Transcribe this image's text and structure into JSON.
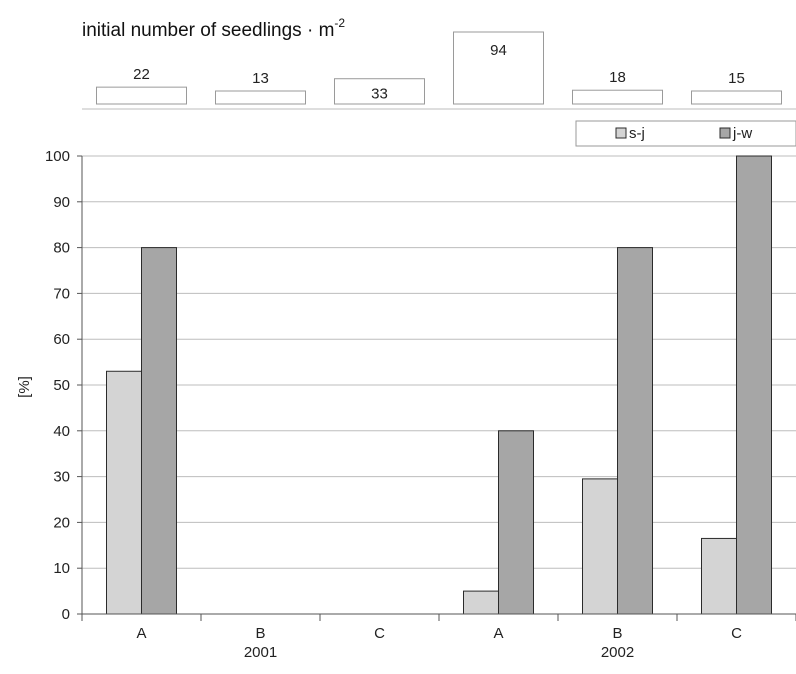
{
  "header": {
    "title": "initial number of seedlings · m",
    "title_superscript": "-2"
  },
  "seedlings": [
    "22",
    "13",
    "33",
    "94",
    "18",
    "15"
  ],
  "seedling_levels": [
    22,
    13,
    33,
    94,
    18,
    15
  ],
  "colors": {
    "s-j": "#d4d4d4",
    "j-w": "#a6a6a6",
    "grid": "#bdbdbd",
    "axis": "#555555",
    "bar_stroke": "#2b2b2b"
  },
  "chart_data": {
    "type": "bar",
    "title": "initial number of seedlings · m-2",
    "ylabel": "[%]",
    "xlabel": "",
    "ylim": [
      0,
      100
    ],
    "yticks": [
      0,
      10,
      20,
      30,
      40,
      50,
      60,
      70,
      80,
      90,
      100
    ],
    "grid": true,
    "legend_position": "top-right",
    "categories": [
      "A",
      "B",
      "C",
      "A",
      "B",
      "C"
    ],
    "groups": [
      {
        "label": "2001",
        "categories": [
          "A",
          "B",
          "C"
        ]
      },
      {
        "label": "2002",
        "categories": [
          "A",
          "B",
          "C"
        ]
      }
    ],
    "series": [
      {
        "name": "s-j",
        "values": [
          53,
          0,
          0,
          5,
          29.5,
          16.5
        ]
      },
      {
        "name": "j-w",
        "values": [
          80,
          0,
          0,
          40,
          80,
          100
        ]
      }
    ]
  }
}
